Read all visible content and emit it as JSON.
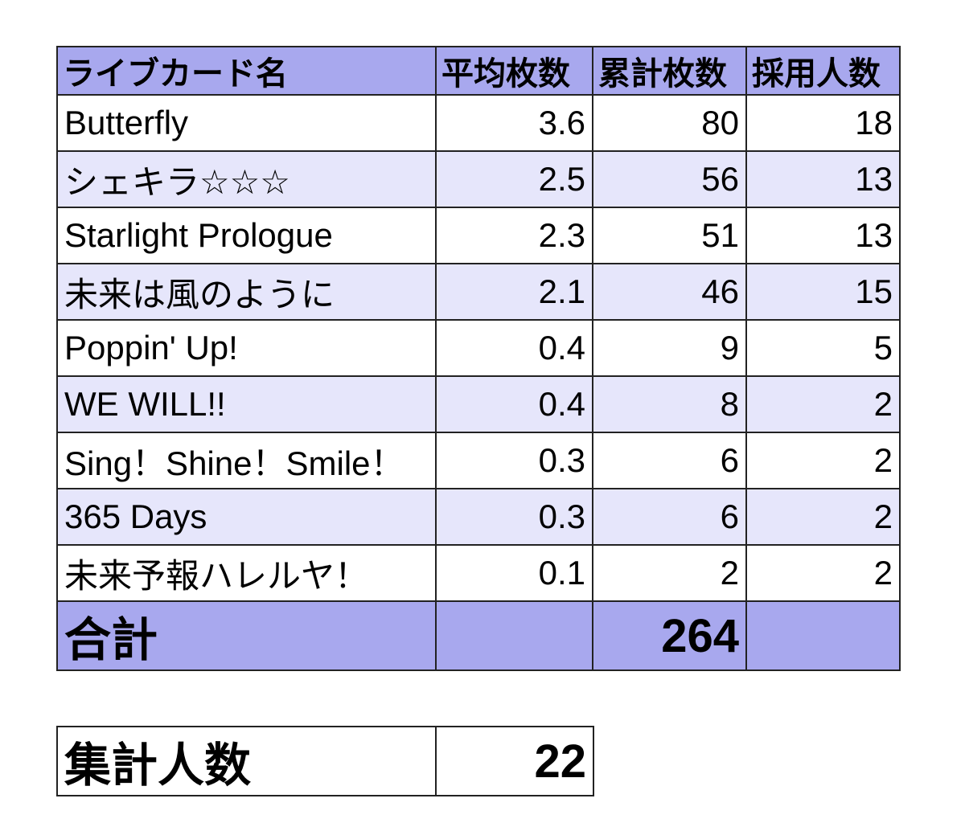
{
  "chart_data": {
    "type": "table",
    "columns": [
      "ライブカード名",
      "平均枚数",
      "累計枚数",
      "採用人数"
    ],
    "rows": [
      {
        "name": "Butterfly",
        "avg": "3.6",
        "total": "80",
        "adopters": "18"
      },
      {
        "name": "シェキラ☆☆☆",
        "avg": "2.5",
        "total": "56",
        "adopters": "13"
      },
      {
        "name": "Starlight Prologue",
        "avg": "2.3",
        "total": "51",
        "adopters": "13"
      },
      {
        "name": "未来は風のように",
        "avg": "2.1",
        "total": "46",
        "adopters": "15"
      },
      {
        "name": "Poppin' Up!",
        "avg": "0.4",
        "total": "9",
        "adopters": "5"
      },
      {
        "name": "WE WILL!!",
        "avg": "0.4",
        "total": "8",
        "adopters": "2"
      },
      {
        "name": "Sing！Shine！Smile！",
        "avg": "0.3",
        "total": "6",
        "adopters": "2"
      },
      {
        "name": "365 Days",
        "avg": "0.3",
        "total": "6",
        "adopters": "2"
      },
      {
        "name": "未来予報ハレルヤ！",
        "avg": "0.1",
        "total": "2",
        "adopters": "2"
      }
    ],
    "total_row": {
      "label": "合計",
      "total": "264"
    },
    "count_table": {
      "label": "集計人数",
      "value": "22"
    }
  },
  "colors": {
    "header_bg": "#a8a8ee",
    "stripe_bg": "#e6e6fb",
    "border": "#222222"
  }
}
